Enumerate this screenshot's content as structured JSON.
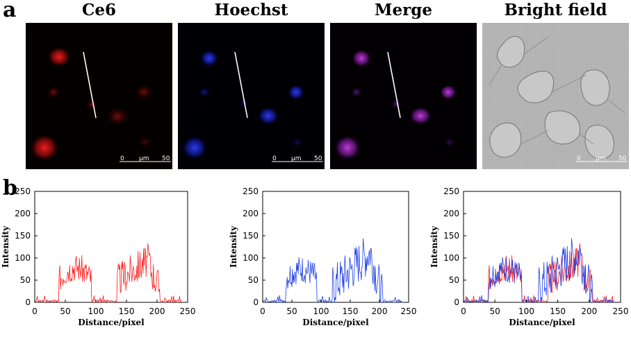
{
  "panel_labels": {
    "a": "a",
    "b": "b"
  },
  "image_titles": [
    "Ce6",
    "Hoechst",
    "Merge",
    "Bright field"
  ],
  "scale_bar": {
    "start": "0",
    "unit": "μm",
    "end": "50"
  },
  "colors": {
    "red": "#ff1a1a",
    "blue": "#1f3fe6",
    "axis": "#000000"
  },
  "chart_data": [
    {
      "type": "line",
      "title": "",
      "xlabel": "Distance/pixel",
      "ylabel": "Intensity",
      "xlim": [
        0,
        250
      ],
      "ylim": [
        0,
        250
      ],
      "xticks": [
        0,
        50,
        100,
        150,
        200,
        250
      ],
      "yticks": [
        0,
        50,
        100,
        150,
        200,
        250
      ],
      "series": [
        {
          "color": "#ff1a1a",
          "seed": 3,
          "profile": "red"
        }
      ]
    },
    {
      "type": "line",
      "title": "",
      "xlabel": "Distance/pixel",
      "ylabel": "Intensity",
      "xlim": [
        0,
        250
      ],
      "ylim": [
        0,
        250
      ],
      "xticks": [
        0,
        50,
        100,
        150,
        200,
        250
      ],
      "yticks": [
        0,
        50,
        100,
        150,
        200,
        250
      ],
      "series": [
        {
          "color": "#1f3fe6",
          "seed": 7,
          "profile": "blue"
        }
      ]
    },
    {
      "type": "line",
      "title": "",
      "xlabel": "Distance/pixel",
      "ylabel": "Intensity",
      "xlim": [
        0,
        250
      ],
      "ylim": [
        0,
        250
      ],
      "xticks": [
        0,
        50,
        100,
        150,
        200,
        250
      ],
      "yticks": [
        0,
        50,
        100,
        150,
        200,
        250
      ],
      "series": [
        {
          "color": "#ff1a1a",
          "seed": 3,
          "profile": "red"
        },
        {
          "color": "#1f3fe6",
          "seed": 7,
          "profile": "blue"
        }
      ]
    }
  ]
}
